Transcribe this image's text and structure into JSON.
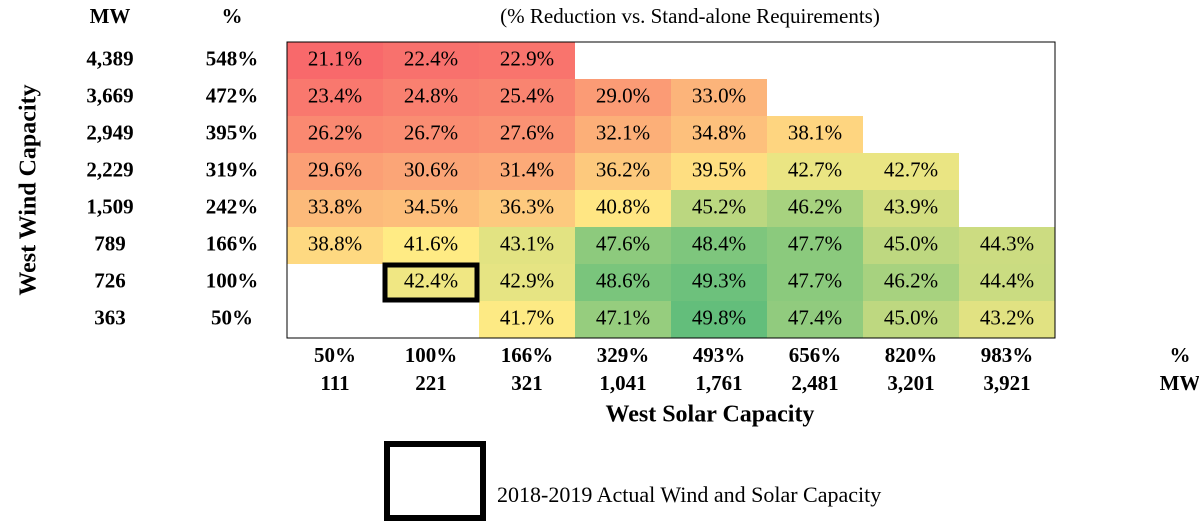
{
  "chart_data": {
    "type": "heatmap",
    "title": "(% Reduction vs. Stand-alone Requirements)",
    "y_label": "West Wind Capacity",
    "x_label": "West Solar Capacity",
    "row_header": {
      "mw": "MW",
      "pct": "%"
    },
    "col_header": {
      "pct": "%",
      "mw": "MW"
    },
    "rows": [
      {
        "mw": "4,389",
        "pct": "548%"
      },
      {
        "mw": "3,669",
        "pct": "472%"
      },
      {
        "mw": "2,949",
        "pct": "395%"
      },
      {
        "mw": "2,229",
        "pct": "319%"
      },
      {
        "mw": "1,509",
        "pct": "242%"
      },
      {
        "mw": "789",
        "pct": "166%"
      },
      {
        "mw": "726",
        "pct": "100%"
      },
      {
        "mw": "363",
        "pct": "50%"
      }
    ],
    "columns": [
      {
        "pct": "50%",
        "mw": "111"
      },
      {
        "pct": "100%",
        "mw": "221"
      },
      {
        "pct": "166%",
        "mw": "321"
      },
      {
        "pct": "329%",
        "mw": "1,041"
      },
      {
        "pct": "493%",
        "mw": "1,761"
      },
      {
        "pct": "656%",
        "mw": "2,481"
      },
      {
        "pct": "820%",
        "mw": "3,201"
      },
      {
        "pct": "983%",
        "mw": "3,921"
      }
    ],
    "values": [
      [
        21.1,
        22.4,
        22.9,
        null,
        null,
        null,
        null,
        null
      ],
      [
        23.4,
        24.8,
        25.4,
        29.0,
        33.0,
        null,
        null,
        null
      ],
      [
        26.2,
        26.7,
        27.6,
        32.1,
        34.8,
        38.1,
        null,
        null
      ],
      [
        29.6,
        30.6,
        31.4,
        36.2,
        39.5,
        42.7,
        42.7,
        null
      ],
      [
        33.8,
        34.5,
        36.3,
        40.8,
        45.2,
        46.2,
        43.9,
        null
      ],
      [
        38.8,
        41.6,
        43.1,
        47.6,
        48.4,
        47.7,
        45.0,
        44.3
      ],
      [
        null,
        42.4,
        42.9,
        48.6,
        49.3,
        47.7,
        46.2,
        44.4
      ],
      [
        null,
        null,
        41.7,
        47.1,
        49.8,
        47.4,
        45.0,
        43.2
      ]
    ],
    "value_labels": [
      [
        "21.1%",
        "22.4%",
        "22.9%",
        null,
        null,
        null,
        null,
        null
      ],
      [
        "23.4%",
        "24.8%",
        "25.4%",
        "29.0%",
        "33.0%",
        null,
        null,
        null
      ],
      [
        "26.2%",
        "26.7%",
        "27.6%",
        "32.1%",
        "34.8%",
        "38.1%",
        null,
        null
      ],
      [
        "29.6%",
        "30.6%",
        "31.4%",
        "36.2%",
        "39.5%",
        "42.7%",
        "42.7%",
        null
      ],
      [
        "33.8%",
        "34.5%",
        "36.3%",
        "40.8%",
        "45.2%",
        "46.2%",
        "43.9%",
        null
      ],
      [
        "38.8%",
        "41.6%",
        "43.1%",
        "47.6%",
        "48.4%",
        "47.7%",
        "45.0%",
        "44.3%"
      ],
      [
        null,
        "42.4%",
        "42.9%",
        "48.6%",
        "49.3%",
        "47.7%",
        "46.2%",
        "44.4%"
      ],
      [
        null,
        null,
        "41.7%",
        "47.1%",
        "49.8%",
        "47.4%",
        "45.0%",
        "43.2%"
      ]
    ],
    "colorscale": [
      "#f8696b",
      "#ffeb84",
      "#63be7b"
    ],
    "highlight": {
      "row": 6,
      "col": 1
    },
    "legend_label": "2018-2019 Actual Wind and Solar Capacity"
  }
}
